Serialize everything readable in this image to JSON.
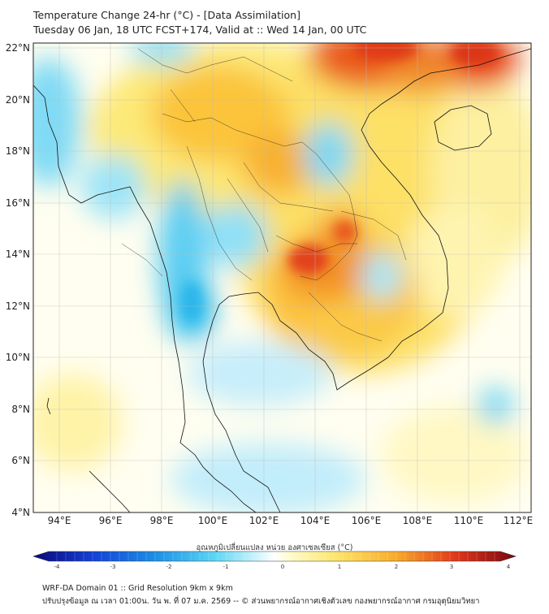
{
  "header": {
    "title_line1": "Temperature Change 24-hr (°C) - [Data Assimilation]",
    "title_line2": "Tuesday 06 Jan, 18 UTC FCST+174, Valid at :: Wed 14 Jan, 00 UTC"
  },
  "map": {
    "lon_ticks": [
      "94°E",
      "96°E",
      "98°E",
      "100°E",
      "102°E",
      "104°E",
      "106°E",
      "108°E",
      "110°E",
      "112°E"
    ],
    "lat_ticks": [
      "22°N",
      "20°N",
      "18°N",
      "16°N",
      "14°N",
      "12°N",
      "10°N",
      "8°N",
      "6°N",
      "4°N"
    ],
    "lon_range": [
      93,
      112.5
    ],
    "lat_range": [
      4,
      22.2
    ]
  },
  "colorbar": {
    "title": "อุณหภูมิเปลี่ยนแปลง หน่วย องศาเซลเซียส (°C)",
    "ticks": [
      "-4",
      "-3",
      "-2",
      "-1",
      "0",
      "1",
      "2",
      "3",
      "4"
    ],
    "range": [
      -4,
      4
    ]
  },
  "footer": {
    "line1": "WRF-DA Domain 01 :: Grid Resolution 9km x 9km",
    "line2": "ปรับปรุงข้อมูล ณ เวลา 01:00น. วัน พ. ที่ 07 ม.ค. 2569 -- © ส่วนพยากรณ์อากาศเชิงตัวเลข กองพยากรณ์อากาศ กรมอุตุนิยมวิทยา"
  },
  "colors": {
    "warm_strong": "#e02a10",
    "warm": "#f39a1a",
    "mild_warm": "#fcd640",
    "light_warm": "#fff7a8",
    "neutral": "#ffffff",
    "cool": "#34c6ee",
    "light_cool": "#b8ecfa"
  }
}
